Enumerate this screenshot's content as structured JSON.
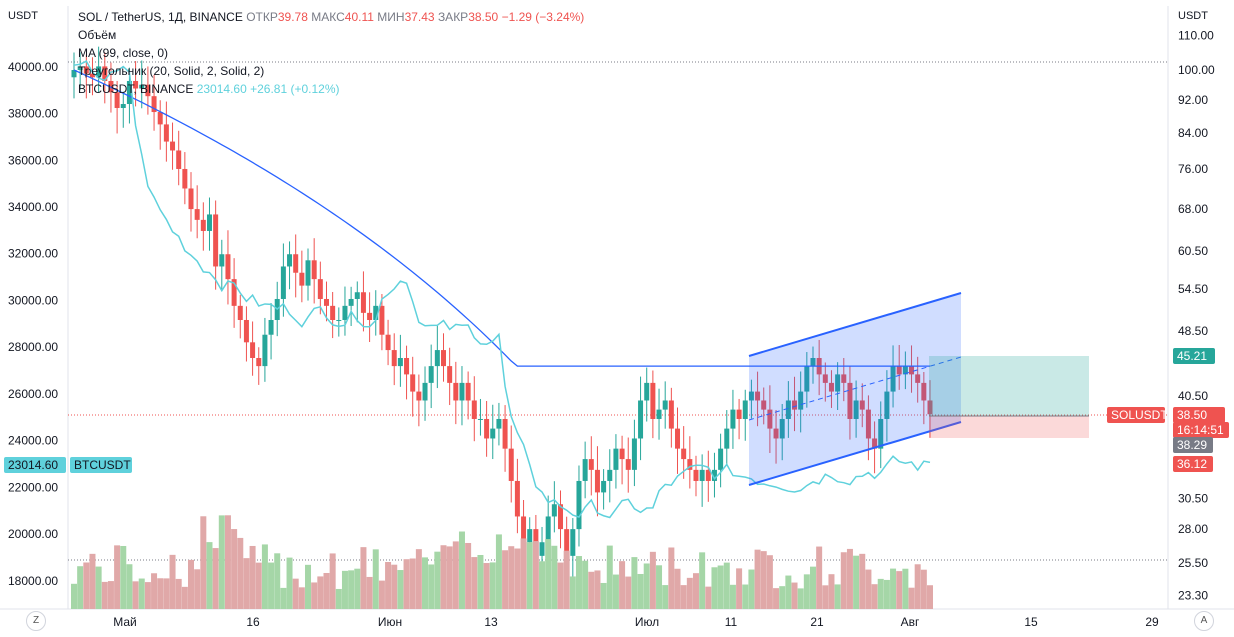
{
  "header": {
    "symbol_line": "SOL / TetherUS, 1Д, BINANCE",
    "open_label": "ОТКР",
    "open": "39.78",
    "high_label": "МАКС",
    "high": "40.11",
    "low_label": "МИН",
    "low": "37.43",
    "close_label": "ЗАКР",
    "close": "38.50",
    "change": "−1.29 (−3.24%)"
  },
  "indicators": {
    "volume": "Объём",
    "ma": "MA (99, close, 0)",
    "triangle": "Треугольник (20, Solid, 2, Solid, 2)",
    "compare_symbol": "BTCUSDT, BINANCE",
    "compare_value": "23014.60",
    "compare_change": "+26.81 (+0.12%)"
  },
  "units": {
    "left": "USDT",
    "right": "USDT"
  },
  "controls": {
    "left_button": "Z",
    "right_button": "A"
  },
  "colors": {
    "up": "#26a69a",
    "down": "#ef5350",
    "ma": "#2962ff",
    "btc": "#5fd1dc",
    "channel": "#2962ff",
    "vol_up": "#a5d6a7",
    "vol_down": "#e0a8a8"
  },
  "chart_data": {
    "type": "candlestick",
    "left_axis": {
      "label": "USDT",
      "ticks": [
        "40000.00",
        "38000.00",
        "36000.00",
        "34000.00",
        "32000.00",
        "30000.00",
        "28000.00",
        "26000.00",
        "24000.00",
        "22000.00",
        "20000.00",
        "18000.00"
      ],
      "range": [
        16800,
        42600
      ]
    },
    "right_axis": {
      "label": "USDT",
      "scale": "log",
      "ticks": [
        "110.00",
        "100.00",
        "92.00",
        "84.00",
        "76.00",
        "68.00",
        "60.50",
        "54.50",
        "48.50",
        "40.50",
        "30.50",
        "28.00",
        "25.50",
        "23.30"
      ]
    },
    "x_ticks": [
      "Май",
      "16",
      "Июн",
      "13",
      "Июл",
      "11",
      "21",
      "Авг",
      "15",
      "29"
    ],
    "price_labels": [
      {
        "text": "45.21",
        "color": "#26a69a"
      },
      {
        "text": "SOLUSDT",
        "color": "#ef5350"
      },
      {
        "text": "38.50",
        "color": "#ef5350"
      },
      {
        "text": "16:14:51",
        "color": "#ef5350"
      },
      {
        "text": "38.29",
        "color": "#787b86"
      },
      {
        "text": "36.12",
        "color": "#ef5350"
      },
      {
        "text": "23014.60",
        "color": "#5fd1dc"
      },
      {
        "text": "BTCUSDT",
        "color": "#5fd1dc"
      }
    ],
    "sol_close": [
      100,
      101,
      99,
      98,
      101,
      97,
      94,
      90,
      91,
      97,
      95,
      96,
      93,
      89,
      86,
      82,
      80,
      76,
      72,
      68,
      66,
      64,
      67,
      58,
      60,
      56,
      52,
      50,
      47,
      45,
      44,
      48,
      50,
      53,
      58,
      60,
      57,
      55,
      59,
      56,
      53,
      52,
      50,
      50,
      52,
      53,
      54,
      51,
      50,
      52,
      48,
      46,
      44,
      45,
      43,
      41,
      40,
      42,
      44,
      46,
      44,
      42,
      40,
      42,
      40,
      38,
      38,
      36,
      37,
      38,
      35,
      32,
      29,
      27,
      28,
      26,
      27,
      29,
      30,
      28,
      26,
      28,
      32,
      34,
      33,
      31,
      32,
      33,
      35,
      34,
      33,
      36,
      40,
      42,
      38,
      39,
      40,
      37,
      35,
      34,
      33,
      32,
      33,
      32,
      33,
      35,
      37,
      39,
      38,
      40,
      41,
      40,
      39,
      37,
      36,
      38,
      40,
      39,
      41,
      44,
      45,
      43,
      42,
      41,
      43,
      42,
      38,
      40,
      39,
      36,
      35,
      38,
      41,
      44,
      43,
      44,
      43,
      42,
      40,
      38.5
    ]
  }
}
